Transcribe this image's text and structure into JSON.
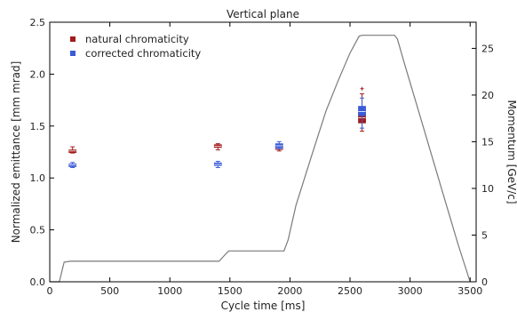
{
  "chart_data": {
    "type": "scatter",
    "title": "Vertical plane",
    "xlabel": "Cycle time [ms]",
    "ylabel": "Normalized emittance [mm mrad]",
    "y2label": "Momentum [GeV/c]",
    "xlim": [
      0,
      3550
    ],
    "ylim": [
      0,
      2.5
    ],
    "y2lim": [
      0,
      27.8
    ],
    "xticks": [
      0,
      500,
      1000,
      1500,
      2000,
      2500,
      3000,
      3500
    ],
    "yticks": [
      0.0,
      0.5,
      1.0,
      1.5,
      2.0,
      2.5
    ],
    "y2ticks": [
      0,
      5,
      10,
      15,
      20,
      25
    ],
    "legend_position": "top-left",
    "series": [
      {
        "name": "natural chromaticity",
        "color": "#a31b1b",
        "boxes": [
          {
            "x": 190,
            "whisker_low": 1.24,
            "q1": 1.255,
            "median": 1.26,
            "q3": 1.27,
            "whisker_high": 1.3,
            "outliers": []
          },
          {
            "x": 1400,
            "whisker_low": 1.27,
            "q1": 1.295,
            "median": 1.305,
            "q3": 1.32,
            "whisker_high": 1.33,
            "outliers": []
          },
          {
            "x": 1910,
            "whisker_low": 1.26,
            "q1": 1.275,
            "median": 1.285,
            "q3": 1.3,
            "whisker_high": 1.31,
            "outliers": []
          },
          {
            "x": 2600,
            "whisker_low": 1.45,
            "q1": 1.53,
            "median": 1.58,
            "q3": 1.63,
            "whisker_high": 1.81,
            "outliers": [
              1.86
            ]
          }
        ]
      },
      {
        "name": "corrected chromaticity",
        "color": "#3a5bd6",
        "boxes": [
          {
            "x": 190,
            "whisker_low": 1.1,
            "q1": 1.115,
            "median": 1.125,
            "q3": 1.135,
            "whisker_high": 1.15,
            "outliers": []
          },
          {
            "x": 1400,
            "whisker_low": 1.1,
            "q1": 1.12,
            "median": 1.13,
            "q3": 1.145,
            "whisker_high": 1.16,
            "outliers": []
          },
          {
            "x": 1910,
            "whisker_low": 1.28,
            "q1": 1.29,
            "median": 1.31,
            "q3": 1.33,
            "whisker_high": 1.35,
            "outliers": []
          },
          {
            "x": 2600,
            "whisker_low": 1.48,
            "q1": 1.6,
            "median": 1.64,
            "q3": 1.69,
            "whisker_high": 1.77,
            "outliers": []
          }
        ]
      }
    ],
    "momentum_curve": {
      "name": "Momentum",
      "color": "#7a7a7a",
      "x": [
        0,
        80,
        120,
        170,
        1410,
        1460,
        1490,
        1950,
        1985,
        2050,
        2180,
        2300,
        2400,
        2500,
        2575,
        2600,
        2870,
        2895,
        2950,
        3100,
        3250,
        3400,
        3500
      ],
      "y": [
        0,
        0,
        2.1,
        2.2,
        2.2,
        2.9,
        3.3,
        3.3,
        4.5,
        8.2,
        13.5,
        18.3,
        21.5,
        24.5,
        26.3,
        26.4,
        26.4,
        26.0,
        23.5,
        17.0,
        10.5,
        4.0,
        0
      ]
    }
  }
}
